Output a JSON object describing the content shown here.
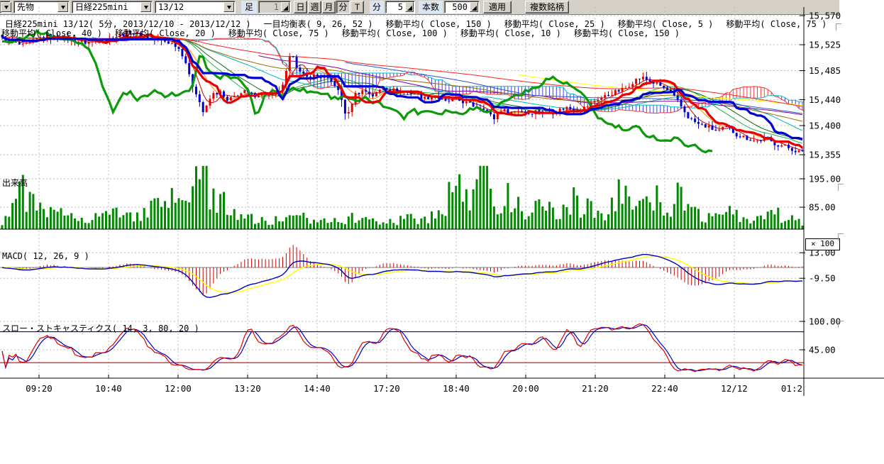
{
  "toolbar": {
    "partial_combo": {
      "name": "hidden-combo"
    },
    "combos": [
      {
        "value": "先物"
      },
      {
        "value": "日経225mini"
      },
      {
        "value": "13/12"
      }
    ],
    "bar_label": "足",
    "bar_value": "1",
    "period_buttons": [
      {
        "label": "日",
        "pressed": false
      },
      {
        "label": "週",
        "pressed": false
      },
      {
        "label": "月",
        "pressed": false
      },
      {
        "label": "分",
        "pressed": true
      },
      {
        "label": "T",
        "pressed": false
      }
    ],
    "minute_label": "分",
    "minute_value": "5",
    "count_label": "本数",
    "count_value": "500",
    "apply_label": "適用",
    "multi_symbol_label": "複数銘柄"
  },
  "header": {
    "line1": [
      "日経225mini 13/12( 5分, 2013/12/10 - 2013/12/12 )",
      "一目均衡表( 9, 26, 52 )",
      "移動平均( Close, 150 )",
      "移動平均( Close, 25 )",
      "移動平均( Close, 5 )",
      "移動平均( Close, 75 )"
    ],
    "line2": [
      "移動平均( Close, 40 )",
      "移動平均( Close, 20 )",
      "移動平均( Close, 75 )",
      "移動平均( Close, 100 )",
      "移動平均( Close, 10 )",
      "移動平均( Close, 150 )"
    ]
  },
  "panes": {
    "volume_title": "出来高",
    "macd_title": "MACD( 12, 26, 9 )",
    "stoch_title": "スロー・ストキャスティクス( 14, 3, 80, 20 )",
    "multiplier": "× 100"
  },
  "axes": {
    "price_labels": [
      "15,570",
      "15,525",
      "15,485",
      "15,440",
      "15,400",
      "15,355"
    ],
    "volume_labels": [
      "195.00",
      "85.00"
    ],
    "macd_labels": [
      "13.00",
      "-9.50"
    ],
    "stoch_labels": [
      "100.00",
      "45.00"
    ],
    "time_labels": [
      "09:20",
      "10:40",
      "12:00",
      "13:20",
      "14:40",
      "17:20",
      "18:40",
      "20:00",
      "21:20",
      "22:40",
      "12/12",
      "01:2"
    ]
  },
  "chart_data": {
    "type": "candlestick",
    "title": "日経225mini 13/12",
    "timeframe": "5分",
    "date_range": "2013/12/10 - 2013/12/12",
    "bar_count": 232,
    "price_ticks": [
      15570,
      15525,
      15485,
      15440,
      15400,
      15355
    ],
    "volume_ticks": [
      195,
      85
    ],
    "macd_ticks": [
      13,
      -9.5
    ],
    "stoch_ticks": [
      100,
      45
    ],
    "x_tick_labels": [
      "09:20",
      "10:40",
      "12:00",
      "13:20",
      "14:40",
      "17:20",
      "18:40",
      "20:00",
      "21:20",
      "22:40",
      "12/12",
      "01:2"
    ],
    "price_path": [
      [
        0,
        15534
      ],
      [
        0.027,
        15523
      ],
      [
        0.053,
        15539
      ],
      [
        0.08,
        15534
      ],
      [
        0.106,
        15528
      ],
      [
        0.133,
        15534
      ],
      [
        0.16,
        15545
      ],
      [
        0.186,
        15534
      ],
      [
        0.205,
        15530
      ],
      [
        0.218,
        15524
      ],
      [
        0.228,
        15505
      ],
      [
        0.235,
        15470
      ],
      [
        0.243,
        15450
      ],
      [
        0.252,
        15418
      ],
      [
        0.262,
        15448
      ],
      [
        0.272,
        15452
      ],
      [
        0.281,
        15437
      ],
      [
        0.292,
        15447
      ],
      [
        0.303,
        15452
      ],
      [
        0.313,
        15446
      ],
      [
        0.323,
        15450
      ],
      [
        0.334,
        15446
      ],
      [
        0.344,
        15452
      ],
      [
        0.352,
        15462
      ],
      [
        0.358,
        15502
      ],
      [
        0.364,
        15510
      ],
      [
        0.37,
        15484
      ],
      [
        0.38,
        15474
      ],
      [
        0.392,
        15478
      ],
      [
        0.404,
        15472
      ],
      [
        0.415,
        15465
      ],
      [
        0.423,
        15445
      ],
      [
        0.431,
        15410
      ],
      [
        0.44,
        15448
      ],
      [
        0.452,
        15455
      ],
      [
        0.464,
        15446
      ],
      [
        0.476,
        15460
      ],
      [
        0.488,
        15455
      ],
      [
        0.5,
        15452
      ],
      [
        0.515,
        15450
      ],
      [
        0.528,
        15442
      ],
      [
        0.54,
        15447
      ],
      [
        0.553,
        15436
      ],
      [
        0.566,
        15441
      ],
      [
        0.578,
        15436
      ],
      [
        0.59,
        15430
      ],
      [
        0.602,
        15428
      ],
      [
        0.614,
        15410
      ],
      [
        0.623,
        15425
      ],
      [
        0.634,
        15420
      ],
      [
        0.646,
        15424
      ],
      [
        0.658,
        15419
      ],
      [
        0.67,
        15424
      ],
      [
        0.682,
        15418
      ],
      [
        0.694,
        15424
      ],
      [
        0.706,
        15428
      ],
      [
        0.718,
        15423
      ],
      [
        0.73,
        15429
      ],
      [
        0.742,
        15440
      ],
      [
        0.754,
        15446
      ],
      [
        0.766,
        15452
      ],
      [
        0.778,
        15457
      ],
      [
        0.79,
        15470
      ],
      [
        0.8,
        15474
      ],
      [
        0.81,
        15468
      ],
      [
        0.822,
        15462
      ],
      [
        0.834,
        15452
      ],
      [
        0.846,
        15434
      ],
      [
        0.858,
        15412
      ],
      [
        0.87,
        15402
      ],
      [
        0.882,
        15398
      ],
      [
        0.894,
        15391
      ],
      [
        0.906,
        15398
      ],
      [
        0.918,
        15386
      ],
      [
        0.93,
        15381
      ],
      [
        0.942,
        15376
      ],
      [
        0.954,
        15380
      ],
      [
        0.966,
        15372
      ],
      [
        0.978,
        15368
      ],
      [
        0.99,
        15362
      ],
      [
        1,
        15358
      ]
    ],
    "volume_path": [
      [
        0,
        25
      ],
      [
        0.02,
        160
      ],
      [
        0.033,
        120
      ],
      [
        0.048,
        70
      ],
      [
        0.068,
        55
      ],
      [
        0.088,
        62
      ],
      [
        0.108,
        45
      ],
      [
        0.128,
        58
      ],
      [
        0.148,
        62
      ],
      [
        0.168,
        50
      ],
      [
        0.188,
        78
      ],
      [
        0.205,
        95
      ],
      [
        0.22,
        115
      ],
      [
        0.235,
        150
      ],
      [
        0.248,
        235
      ],
      [
        0.256,
        190
      ],
      [
        0.265,
        120
      ],
      [
        0.275,
        95
      ],
      [
        0.288,
        85
      ],
      [
        0.3,
        60
      ],
      [
        0.32,
        30
      ],
      [
        0.34,
        32
      ],
      [
        0.36,
        38
      ],
      [
        0.38,
        42
      ],
      [
        0.4,
        40
      ],
      [
        0.42,
        46
      ],
      [
        0.44,
        40
      ],
      [
        0.46,
        36
      ],
      [
        0.48,
        30
      ],
      [
        0.5,
        36
      ],
      [
        0.515,
        44
      ],
      [
        0.53,
        40
      ],
      [
        0.545,
        60
      ],
      [
        0.558,
        130
      ],
      [
        0.568,
        165
      ],
      [
        0.578,
        150
      ],
      [
        0.588,
        95
      ],
      [
        0.598,
        185
      ],
      [
        0.608,
        225
      ],
      [
        0.618,
        120
      ],
      [
        0.63,
        130
      ],
      [
        0.64,
        88
      ],
      [
        0.652,
        72
      ],
      [
        0.664,
        82
      ],
      [
        0.676,
        76
      ],
      [
        0.688,
        70
      ],
      [
        0.7,
        66
      ],
      [
        0.712,
        115
      ],
      [
        0.722,
        78
      ],
      [
        0.734,
        92
      ],
      [
        0.746,
        66
      ],
      [
        0.758,
        58
      ],
      [
        0.768,
        120
      ],
      [
        0.778,
        165
      ],
      [
        0.788,
        88
      ],
      [
        0.798,
        72
      ],
      [
        0.808,
        98
      ],
      [
        0.818,
        112
      ],
      [
        0.828,
        72
      ],
      [
        0.838,
        88
      ],
      [
        0.848,
        155
      ],
      [
        0.858,
        62
      ],
      [
        0.868,
        78
      ],
      [
        0.878,
        48
      ],
      [
        0.89,
        68
      ],
      [
        0.9,
        88
      ],
      [
        0.912,
        62
      ],
      [
        0.924,
        46
      ],
      [
        0.936,
        42
      ],
      [
        0.948,
        38
      ],
      [
        0.96,
        48
      ],
      [
        0.97,
        58
      ],
      [
        0.98,
        42
      ],
      [
        0.99,
        50
      ],
      [
        1,
        28
      ]
    ],
    "indicators": {
      "ichimoku": {
        "params": [
          9,
          26,
          52
        ],
        "tenkan_color": "#e80000",
        "kijun_color": "#0000d0",
        "chikou_color": "#0a9a0a",
        "senkou_a_color": "#ff3030",
        "senkou_b_color": "#00c0c0",
        "cloud_up_hatch": "#ff4040",
        "cloud_down_hatch": "#4040ff"
      },
      "moving_averages": [
        {
          "period": 5,
          "color": "#d00000",
          "type": "sma"
        },
        {
          "period": 10,
          "color": "#ff8c00",
          "type": "sma"
        },
        {
          "period": 20,
          "color": "#22b14c",
          "type": "sma"
        },
        {
          "period": 25,
          "color": "#116611",
          "type": "sma"
        },
        {
          "period": 40,
          "color": "#00b7b7",
          "type": "sma"
        },
        {
          "period": 75,
          "color": "#8000a0",
          "type": "sma"
        },
        {
          "period": 75,
          "color": "#9a6a00",
          "type": "ema"
        },
        {
          "period": 100,
          "color": "#3355cc",
          "type": "sma"
        },
        {
          "period": 150,
          "color": "#ffff00",
          "type": "sma"
        },
        {
          "period": 150,
          "color": "#ff2222",
          "type": "ema"
        }
      ],
      "macd": {
        "params": [
          12,
          26,
          9
        ],
        "line_color": "#0000bb",
        "signal_color": "#ffff00",
        "hist_color": "#cc0000"
      },
      "stochastics": {
        "params": [
          14,
          3,
          80,
          20
        ],
        "k_color": "#e00000",
        "d_color": "#0000c0",
        "upper_line": 80,
        "lower_line": 20,
        "upper_color": "#0000cc",
        "lower_color": "#cc0000"
      }
    },
    "colors": {
      "up_candle": "#e60000",
      "down_candle": "#0000cc",
      "volume_bar": "#008a00",
      "grid": "#bcbcbc",
      "axis": "#000000"
    }
  }
}
